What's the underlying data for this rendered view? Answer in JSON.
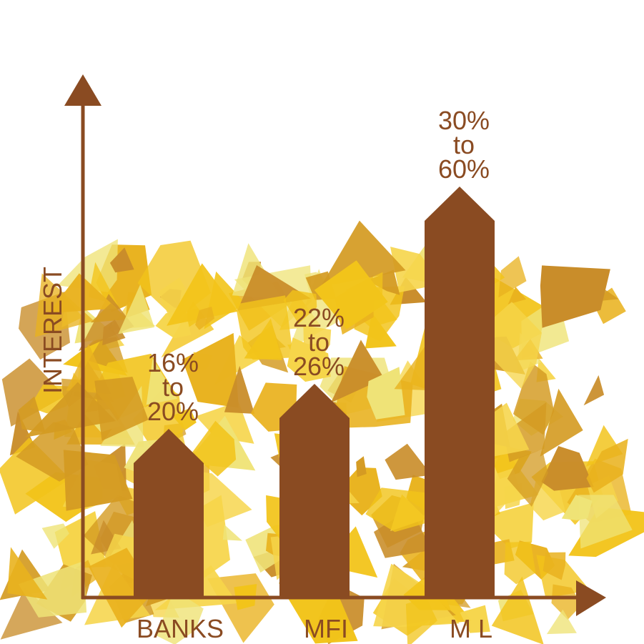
{
  "chart_data": {
    "type": "bar",
    "categories": [
      "BANKS",
      "MFI",
      "M L"
    ],
    "ylabel": "INTEREST",
    "xlabel": "",
    "series": [
      {
        "values": [
          {
            "low": 16,
            "high": 20,
            "lines": [
              "16%",
              "to",
              "20%"
            ]
          },
          {
            "low": 22,
            "high": 26,
            "lines": [
              "22%",
              "to",
              "26%"
            ]
          },
          {
            "low": 30,
            "high": 60,
            "lines": [
              "30%",
              "to",
              "60%"
            ]
          }
        ]
      }
    ],
    "ylim": [
      0,
      60
    ],
    "grid": false,
    "legend": "none"
  },
  "colors": {
    "bar": "#8a4b22",
    "axis": "#8a4b22",
    "text": "#8a4b22",
    "background_splash": [
      "#f2c41a",
      "#e9b21e",
      "#f6d54a",
      "#efe377",
      "#d49b22",
      "#c98d2a"
    ]
  }
}
